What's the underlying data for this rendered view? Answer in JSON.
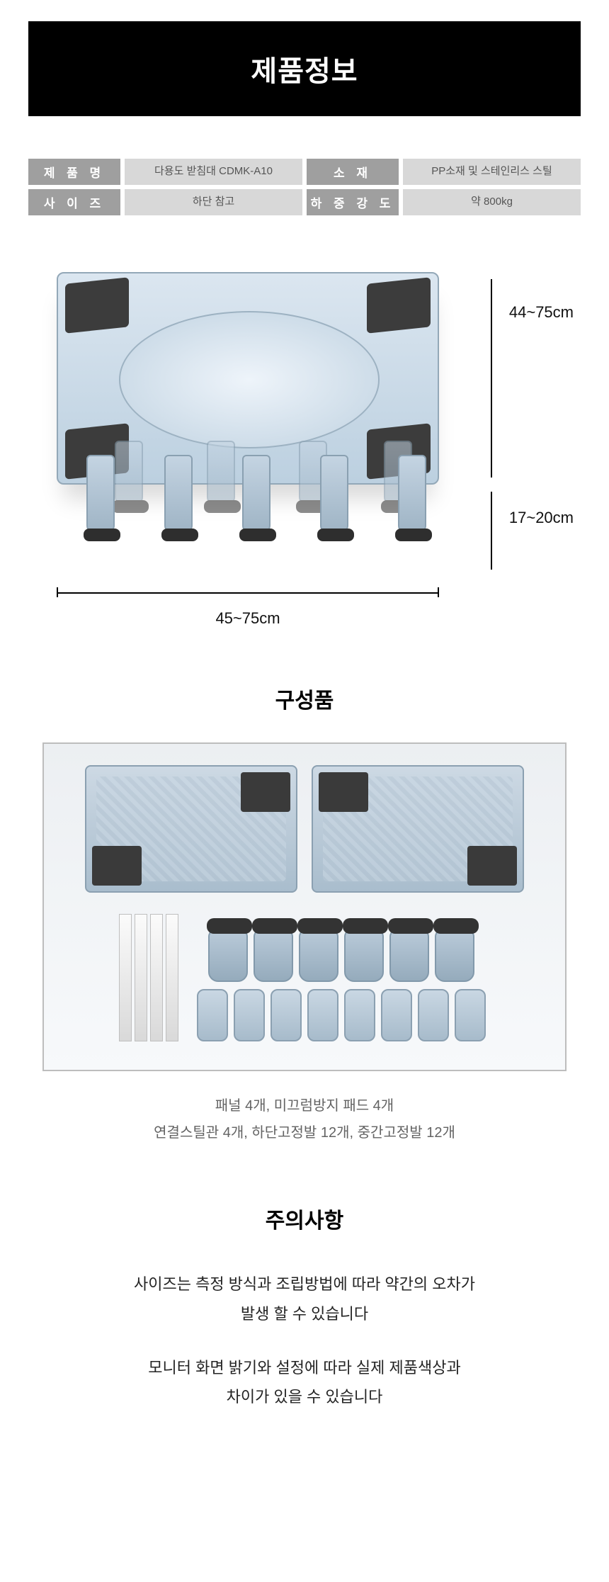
{
  "header": {
    "title": "제품정보"
  },
  "specs": {
    "name_label": "제 품 명",
    "name_value": "다용도 받침대 CDMK-A10",
    "material_label": "소 재",
    "material_value": "PP소재 및 스테인리스 스틸",
    "size_label": "사 이 즈",
    "size_value": "하단 참고",
    "load_label": "하 중 강 도",
    "load_value": "약 800kg",
    "label_bg": "#9f9f9f",
    "label_color": "#ffffff",
    "value_bg": "#d8d8d8",
    "value_color": "#555555"
  },
  "dimensions": {
    "width": "45~75cm",
    "depth": "44~75cm",
    "height": "17~20cm"
  },
  "components": {
    "title": "구성품",
    "caption_line1": "패널 4개, 미끄럼방지 패드 4개",
    "caption_line2": "연결스틸관 4개, 하단고정발 12개, 중간고정발 12개"
  },
  "notice": {
    "title": "주의사항",
    "line1": "사이즈는 측정 방식과 조립방법에 따라 약간의 오차가",
    "line2": "발생 할 수 있습니다",
    "line3": "모니터 화면 밝기와 설정에 따라 실제 제품색상과",
    "line4": "차이가 있을 수 있습니다"
  },
  "colors": {
    "header_bg": "#000000",
    "header_text": "#ffffff",
    "product_base": "#bcd0e0",
    "product_pad": "#3c3c3c",
    "border_gray": "#bdbdbd",
    "caption_gray": "#636363"
  }
}
